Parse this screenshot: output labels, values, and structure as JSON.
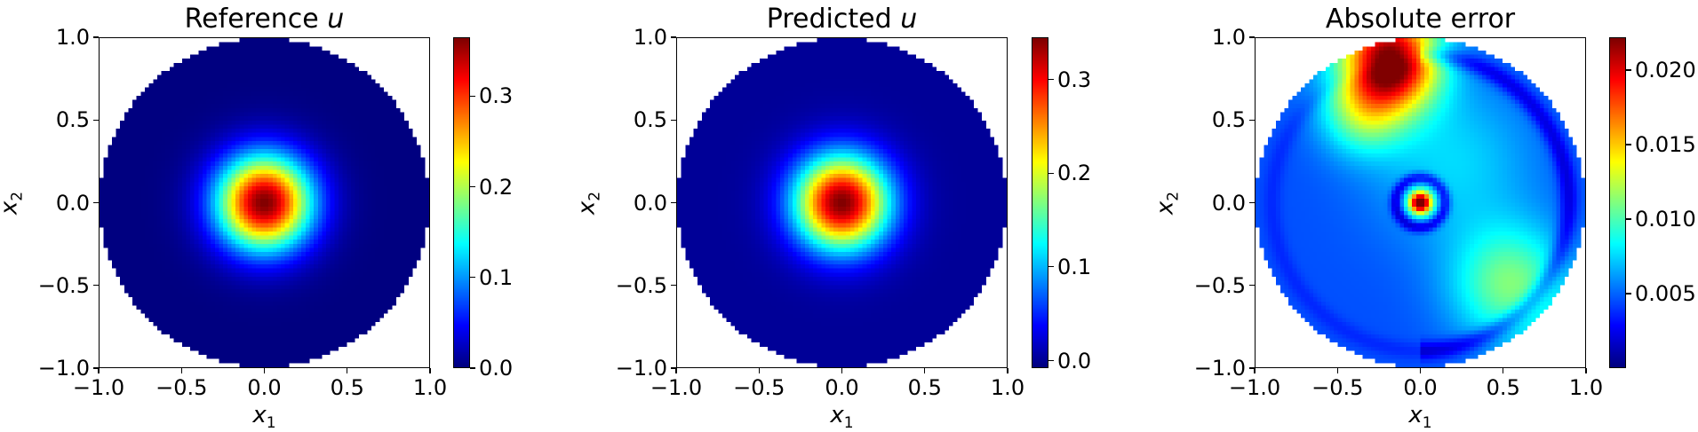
{
  "chart_data": [
    {
      "type": "heatmap",
      "title": "Reference u",
      "title_prefix": "Reference",
      "title_var": "u",
      "xlabel": "x1",
      "ylabel": "x2",
      "xlim": [
        -1.0,
        1.0
      ],
      "ylim": [
        -1.0,
        1.0
      ],
      "x_ticks": [
        "−1.0",
        "−0.5",
        "0.0",
        "0.5",
        "1.0"
      ],
      "y_ticks": [
        "−1.0",
        "−0.5",
        "0.0",
        "0.5",
        "1.0"
      ],
      "domain": "unit disk",
      "field": "radially symmetric peak centred at (0, 0), maximum at centre, decaying to 0 at r ≈ 0.6",
      "colormap": "jet",
      "colorbar_range": [
        0.0,
        0.365
      ],
      "colorbar_ticks": [
        "0.0",
        "0.1",
        "0.2",
        "0.3"
      ],
      "colorbar_tick_values": [
        0.0,
        0.1,
        0.2,
        0.3
      ],
      "peak_value": 0.365,
      "peak_location": [
        0.0,
        0.0
      ],
      "grid": false
    },
    {
      "type": "heatmap",
      "title": "Predicted u",
      "title_prefix": "Predicted",
      "title_var": "u",
      "xlabel": "x1",
      "ylabel": "x2",
      "xlim": [
        -1.0,
        1.0
      ],
      "ylim": [
        -1.0,
        1.0
      ],
      "x_ticks": [
        "−1.0",
        "−0.5",
        "0.0",
        "0.5",
        "1.0"
      ],
      "y_ticks": [
        "−1.0",
        "−0.5",
        "0.0",
        "0.5",
        "1.0"
      ],
      "domain": "unit disk",
      "field": "radially symmetric peak centred at (0, 0), maximum at centre, decaying to ≈0 at r ≈ 0.6",
      "colormap": "jet",
      "colorbar_range": [
        -0.008,
        0.345
      ],
      "colorbar_ticks": [
        "0.0",
        "0.1",
        "0.2",
        "0.3"
      ],
      "colorbar_tick_values": [
        0.0,
        0.1,
        0.2,
        0.3
      ],
      "peak_value": 0.345,
      "peak_location": [
        0.0,
        0.0
      ],
      "grid": false
    },
    {
      "type": "heatmap",
      "title": "Absolute error",
      "title_prefix": "Absolute error",
      "title_var": "",
      "xlabel": "x1",
      "ylabel": "x2",
      "xlim": [
        -1.0,
        1.0
      ],
      "ylim": [
        -1.0,
        1.0
      ],
      "x_ticks": [
        "−1.0",
        "−0.5",
        "0.0",
        "0.5",
        "1.0"
      ],
      "y_ticks": [
        "−1.0",
        "−0.5",
        "0.0",
        "0.5",
        "1.0"
      ],
      "domain": "unit disk",
      "field": "error maximum near (−0.2, 0.85) at top, ring around centre with local peak ≈0.020 at (0, 0), moderate error patch near (0.55, −0.5), low error elsewhere",
      "colormap": "jet",
      "colorbar_range": [
        0.0,
        0.0222
      ],
      "colorbar_ticks": [
        "0.005",
        "0.010",
        "0.015",
        "0.020"
      ],
      "colorbar_tick_values": [
        0.005,
        0.01,
        0.015,
        0.02
      ],
      "peak_value": 0.0222,
      "peak_location": [
        -0.2,
        0.85
      ],
      "grid": false
    }
  ]
}
